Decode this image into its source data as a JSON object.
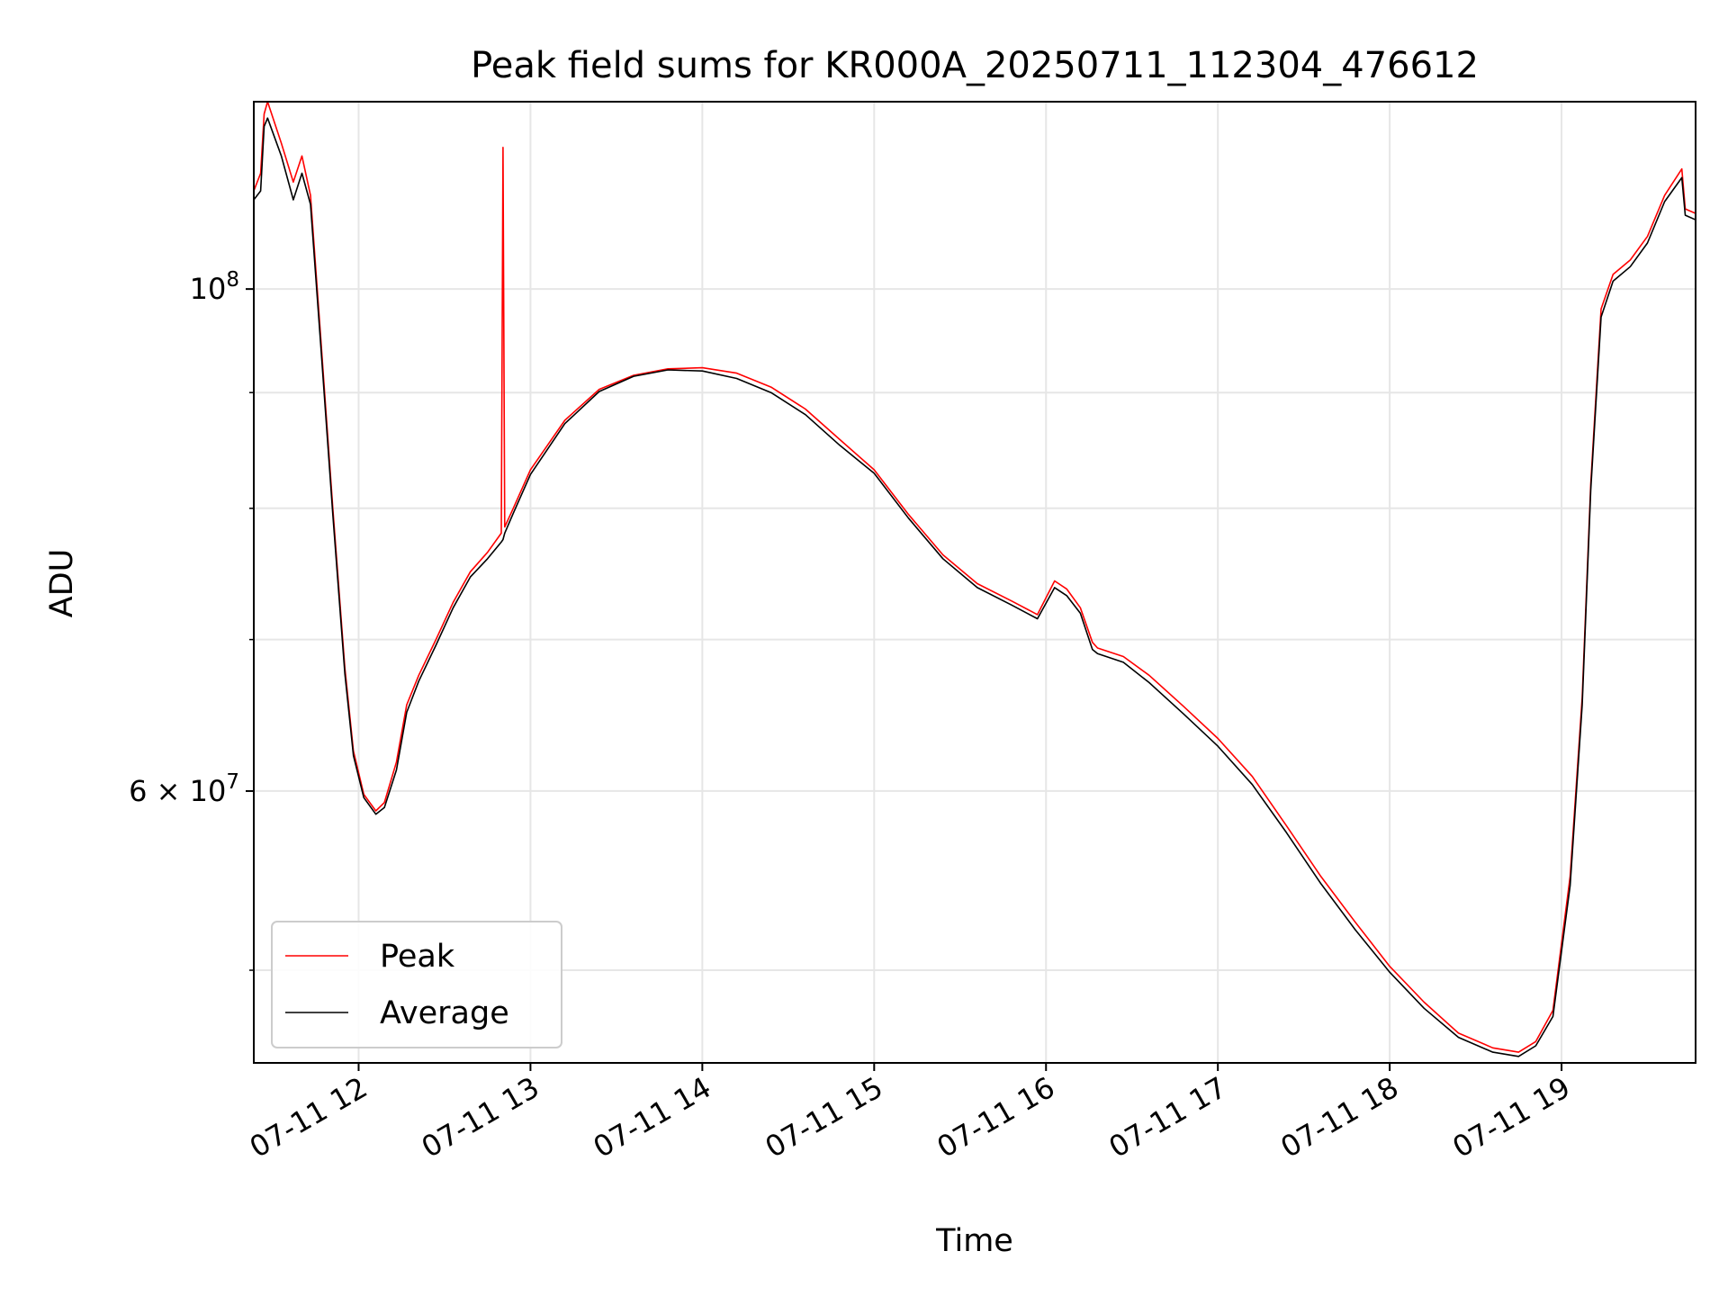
{
  "chart_data": {
    "type": "line",
    "title": "Peak field sums for KR000A_20250711_112304_476612",
    "xlabel": "Time",
    "ylabel": "ADU",
    "y_scale": "log",
    "x_unit": "hours (07-11, decimal hour of day)",
    "xlim": [
      11.39,
      19.78
    ],
    "ylim": [
      45500000,
      121000000
    ],
    "x_ticks": [
      {
        "value": 12,
        "label": "07-11 12"
      },
      {
        "value": 13,
        "label": "07-11 13"
      },
      {
        "value": 14,
        "label": "07-11 14"
      },
      {
        "value": 15,
        "label": "07-11 15"
      },
      {
        "value": 16,
        "label": "07-11 16"
      },
      {
        "value": 17,
        "label": "07-11 17"
      },
      {
        "value": 18,
        "label": "07-11 18"
      },
      {
        "value": 19,
        "label": "07-11 19"
      }
    ],
    "y_major_ticks": [
      {
        "value": 100000000,
        "base": "10",
        "exp": "8"
      },
      {
        "value": 60000000,
        "base": "6 × 10",
        "exp": "7"
      }
    ],
    "y_minor_ticks": [
      50000000,
      70000000,
      80000000,
      90000000
    ],
    "grid": true,
    "legend": {
      "placement": "lower-left",
      "entries": [
        "Peak",
        "Average"
      ]
    },
    "series": [
      {
        "name": "Peak",
        "color": "#ff0000",
        "x": [
          11.39,
          11.43,
          11.45,
          11.47,
          11.55,
          11.62,
          11.67,
          11.72,
          11.78,
          11.85,
          11.92,
          11.97,
          12.03,
          12.1,
          12.15,
          12.22,
          12.28,
          12.35,
          12.45,
          12.55,
          12.65,
          12.75,
          12.83,
          12.84,
          12.85,
          12.9,
          13.0,
          13.2,
          13.4,
          13.6,
          13.8,
          14.0,
          14.2,
          14.4,
          14.6,
          14.8,
          15.0,
          15.2,
          15.4,
          15.6,
          15.8,
          15.95,
          16.05,
          16.12,
          16.2,
          16.27,
          16.3,
          16.45,
          16.6,
          16.8,
          17.0,
          17.2,
          17.4,
          17.6,
          17.8,
          18.0,
          18.2,
          18.4,
          18.6,
          18.75,
          18.85,
          18.95,
          19.05,
          19.12,
          19.17,
          19.23,
          19.3,
          19.4,
          19.5,
          19.6,
          19.7,
          19.72,
          19.78
        ],
        "y": [
          110500000,
          112500000,
          119500000,
          121000000,
          116000000,
          111500000,
          114500000,
          110000000,
          95000000,
          80000000,
          68000000,
          62500000,
          59800000,
          58800000,
          59300000,
          61800000,
          65500000,
          67500000,
          70000000,
          72700000,
          75000000,
          76500000,
          78000000,
          115500000,
          78500000,
          80000000,
          83200000,
          87500000,
          90300000,
          91600000,
          92200000,
          92300000,
          91800000,
          90500000,
          88500000,
          85800000,
          83200000,
          79500000,
          76300000,
          74100000,
          72800000,
          71800000,
          74300000,
          73700000,
          72300000,
          69800000,
          69400000,
          68800000,
          67500000,
          65400000,
          63300000,
          60900000,
          57900000,
          55000000,
          52500000,
          50200000,
          48400000,
          46900000,
          46200000,
          46000000,
          46500000,
          48000000,
          55000000,
          66000000,
          82000000,
          98000000,
          101500000,
          103000000,
          105500000,
          110000000,
          113000000,
          108500000,
          108000000
        ]
      },
      {
        "name": "Average",
        "color": "#000000",
        "x": [
          11.39,
          11.43,
          11.45,
          11.47,
          11.55,
          11.62,
          11.67,
          11.72,
          11.78,
          11.85,
          11.92,
          11.97,
          12.03,
          12.1,
          12.15,
          12.22,
          12.28,
          12.35,
          12.45,
          12.55,
          12.65,
          12.75,
          12.83,
          12.84,
          12.85,
          12.9,
          13.0,
          13.2,
          13.4,
          13.6,
          13.8,
          14.0,
          14.2,
          14.4,
          14.6,
          14.8,
          15.0,
          15.2,
          15.4,
          15.6,
          15.8,
          15.95,
          16.05,
          16.12,
          16.2,
          16.27,
          16.3,
          16.45,
          16.6,
          16.8,
          17.0,
          17.2,
          17.4,
          17.6,
          17.8,
          18.0,
          18.2,
          18.4,
          18.6,
          18.75,
          18.85,
          18.95,
          19.05,
          19.12,
          19.17,
          19.23,
          19.3,
          19.4,
          19.5,
          19.6,
          19.7,
          19.72,
          19.78
        ],
        "y": [
          109500000,
          110500000,
          118000000,
          119000000,
          114500000,
          109500000,
          112500000,
          109000000,
          94300000,
          79500000,
          67600000,
          62200000,
          59600000,
          58600000,
          59000000,
          61300000,
          65000000,
          67100000,
          69600000,
          72300000,
          74600000,
          76000000,
          77300000,
          77500000,
          78000000,
          79600000,
          82800000,
          87200000,
          90100000,
          91500000,
          92100000,
          92000000,
          91300000,
          90000000,
          88000000,
          85300000,
          82900000,
          79200000,
          76000000,
          73800000,
          72500000,
          71500000,
          73800000,
          73200000,
          71900000,
          69300000,
          69000000,
          68400000,
          67000000,
          64900000,
          62800000,
          60400000,
          57500000,
          54600000,
          52100000,
          49900000,
          48100000,
          46700000,
          46000000,
          45800000,
          46300000,
          47700000,
          54500000,
          65500000,
          81500000,
          97200000,
          100800000,
          102300000,
          104800000,
          109300000,
          112000000,
          107800000,
          107300000
        ]
      }
    ]
  }
}
